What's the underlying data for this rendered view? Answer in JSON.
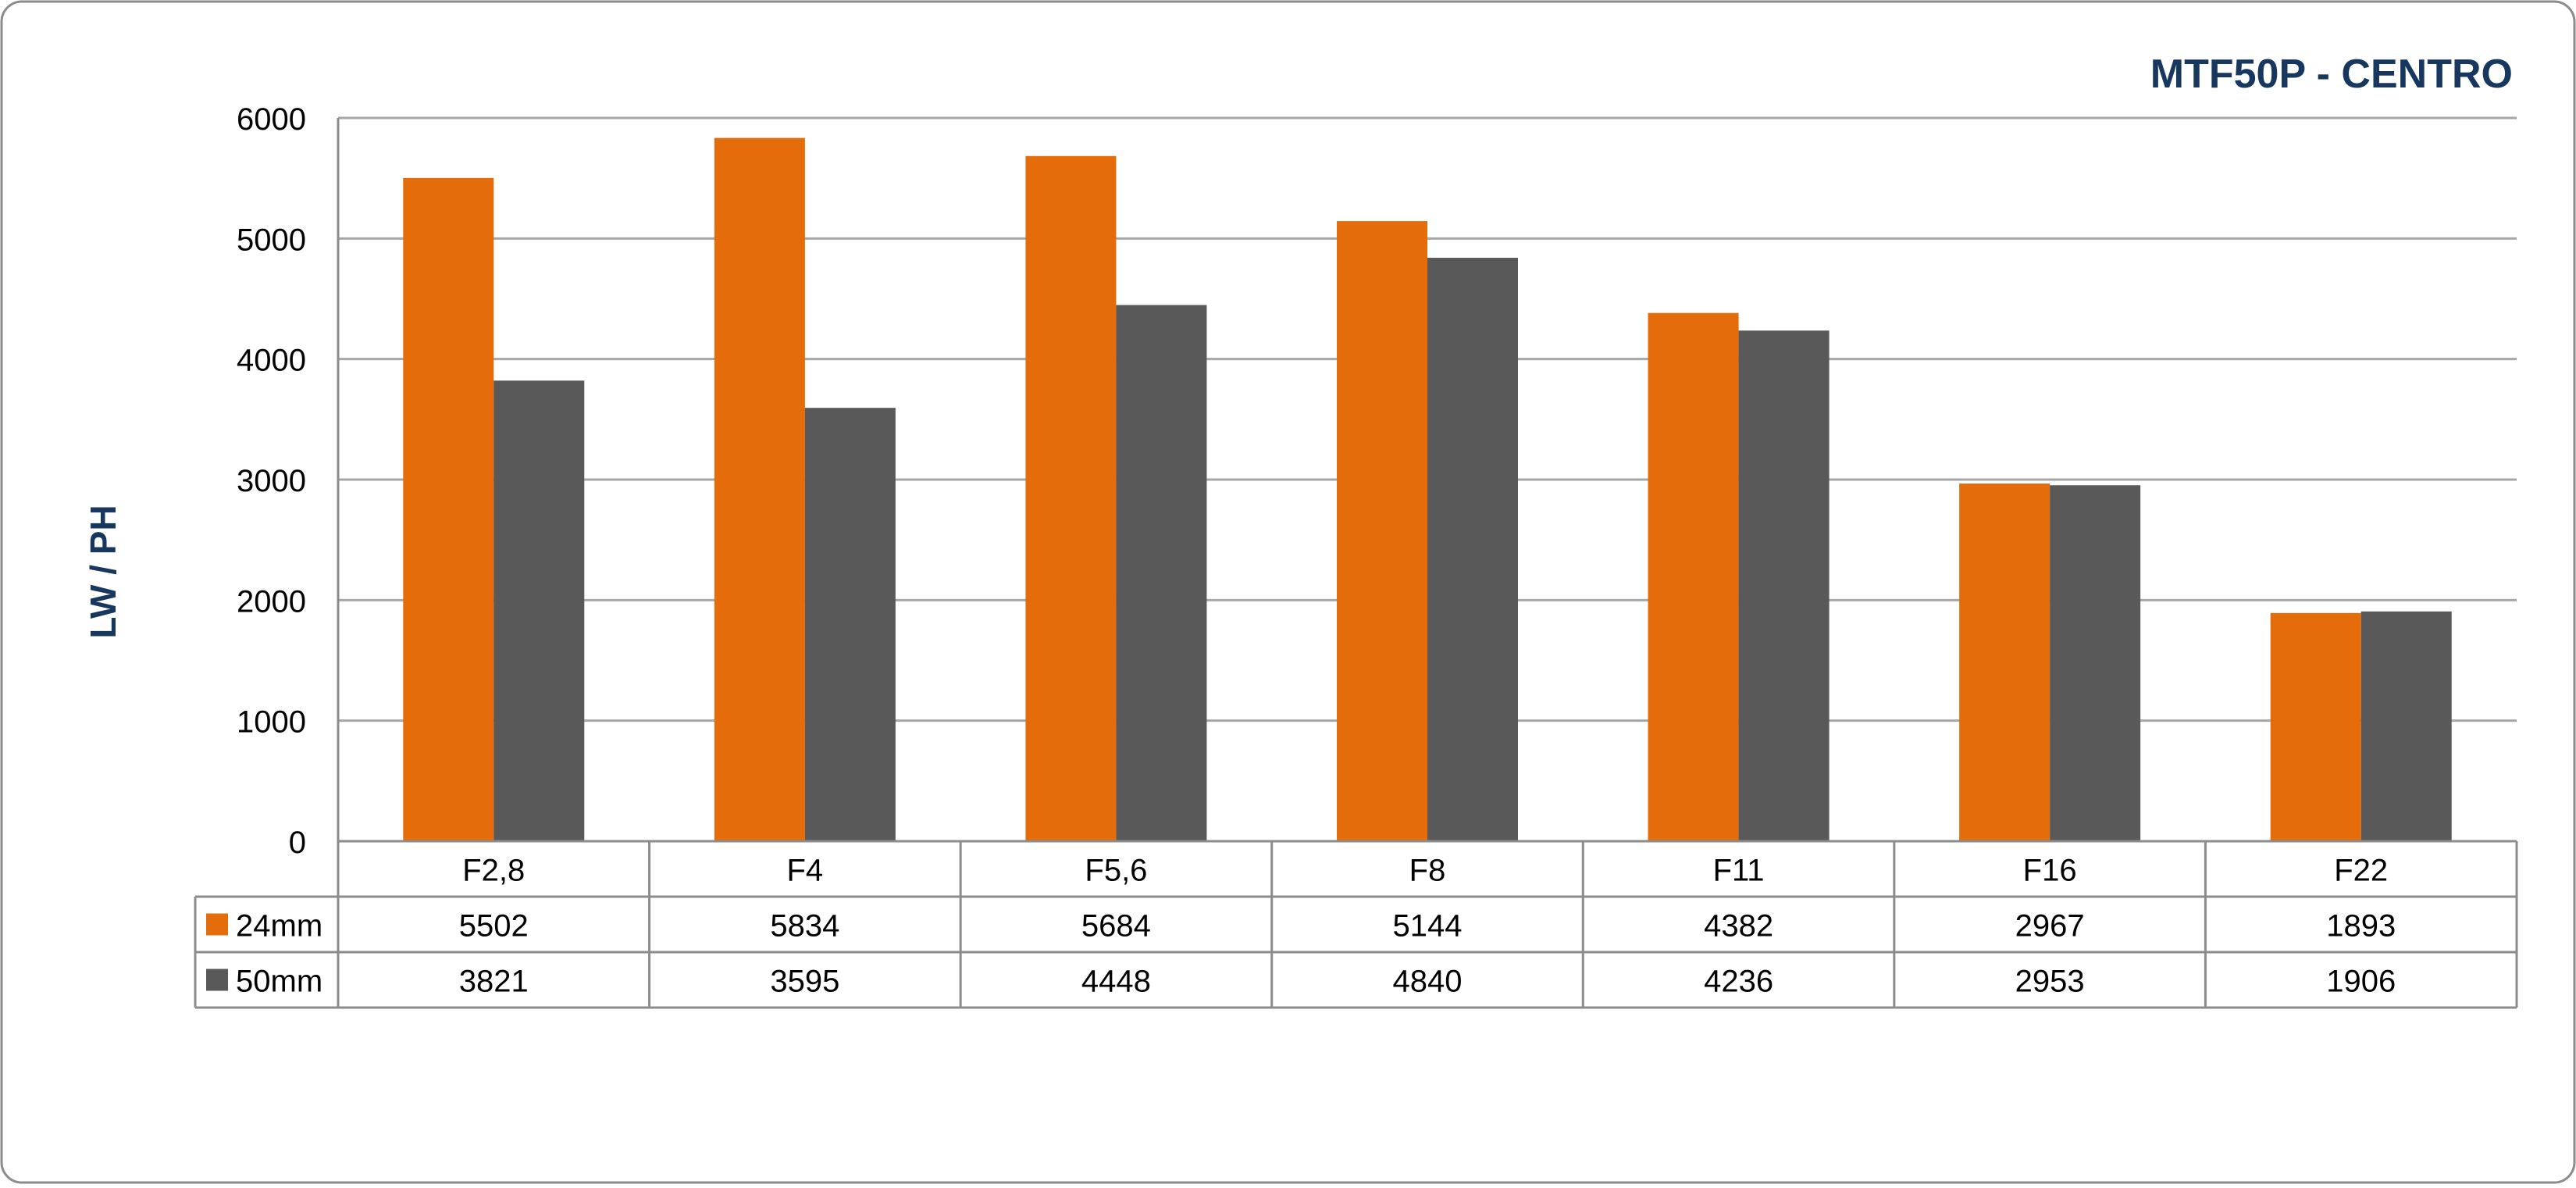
{
  "chart_data": {
    "type": "bar",
    "title": "MTF50P - CENTRO",
    "ylabel": "LW / PH",
    "xlabel": "",
    "ylim": [
      0,
      6000
    ],
    "yticks": [
      0,
      1000,
      2000,
      3000,
      4000,
      5000,
      6000
    ],
    "grid": true,
    "legend": "data-table",
    "categories": [
      "F2,8",
      "F4",
      "F5,6",
      "F8",
      "F11",
      "F16",
      "F22"
    ],
    "series": [
      {
        "name": "24mm",
        "color": "#e46c0a",
        "values": [
          5502,
          5834,
          5684,
          5144,
          4382,
          2967,
          1893
        ]
      },
      {
        "name": "50mm",
        "color": "#595959",
        "values": [
          3821,
          3595,
          4448,
          4840,
          4236,
          2953,
          1906
        ]
      }
    ],
    "colors": {
      "title": "#17375e",
      "axis_text": "#000000",
      "grid": "#a6a6a6",
      "frame": "#8c8c8c"
    }
  }
}
